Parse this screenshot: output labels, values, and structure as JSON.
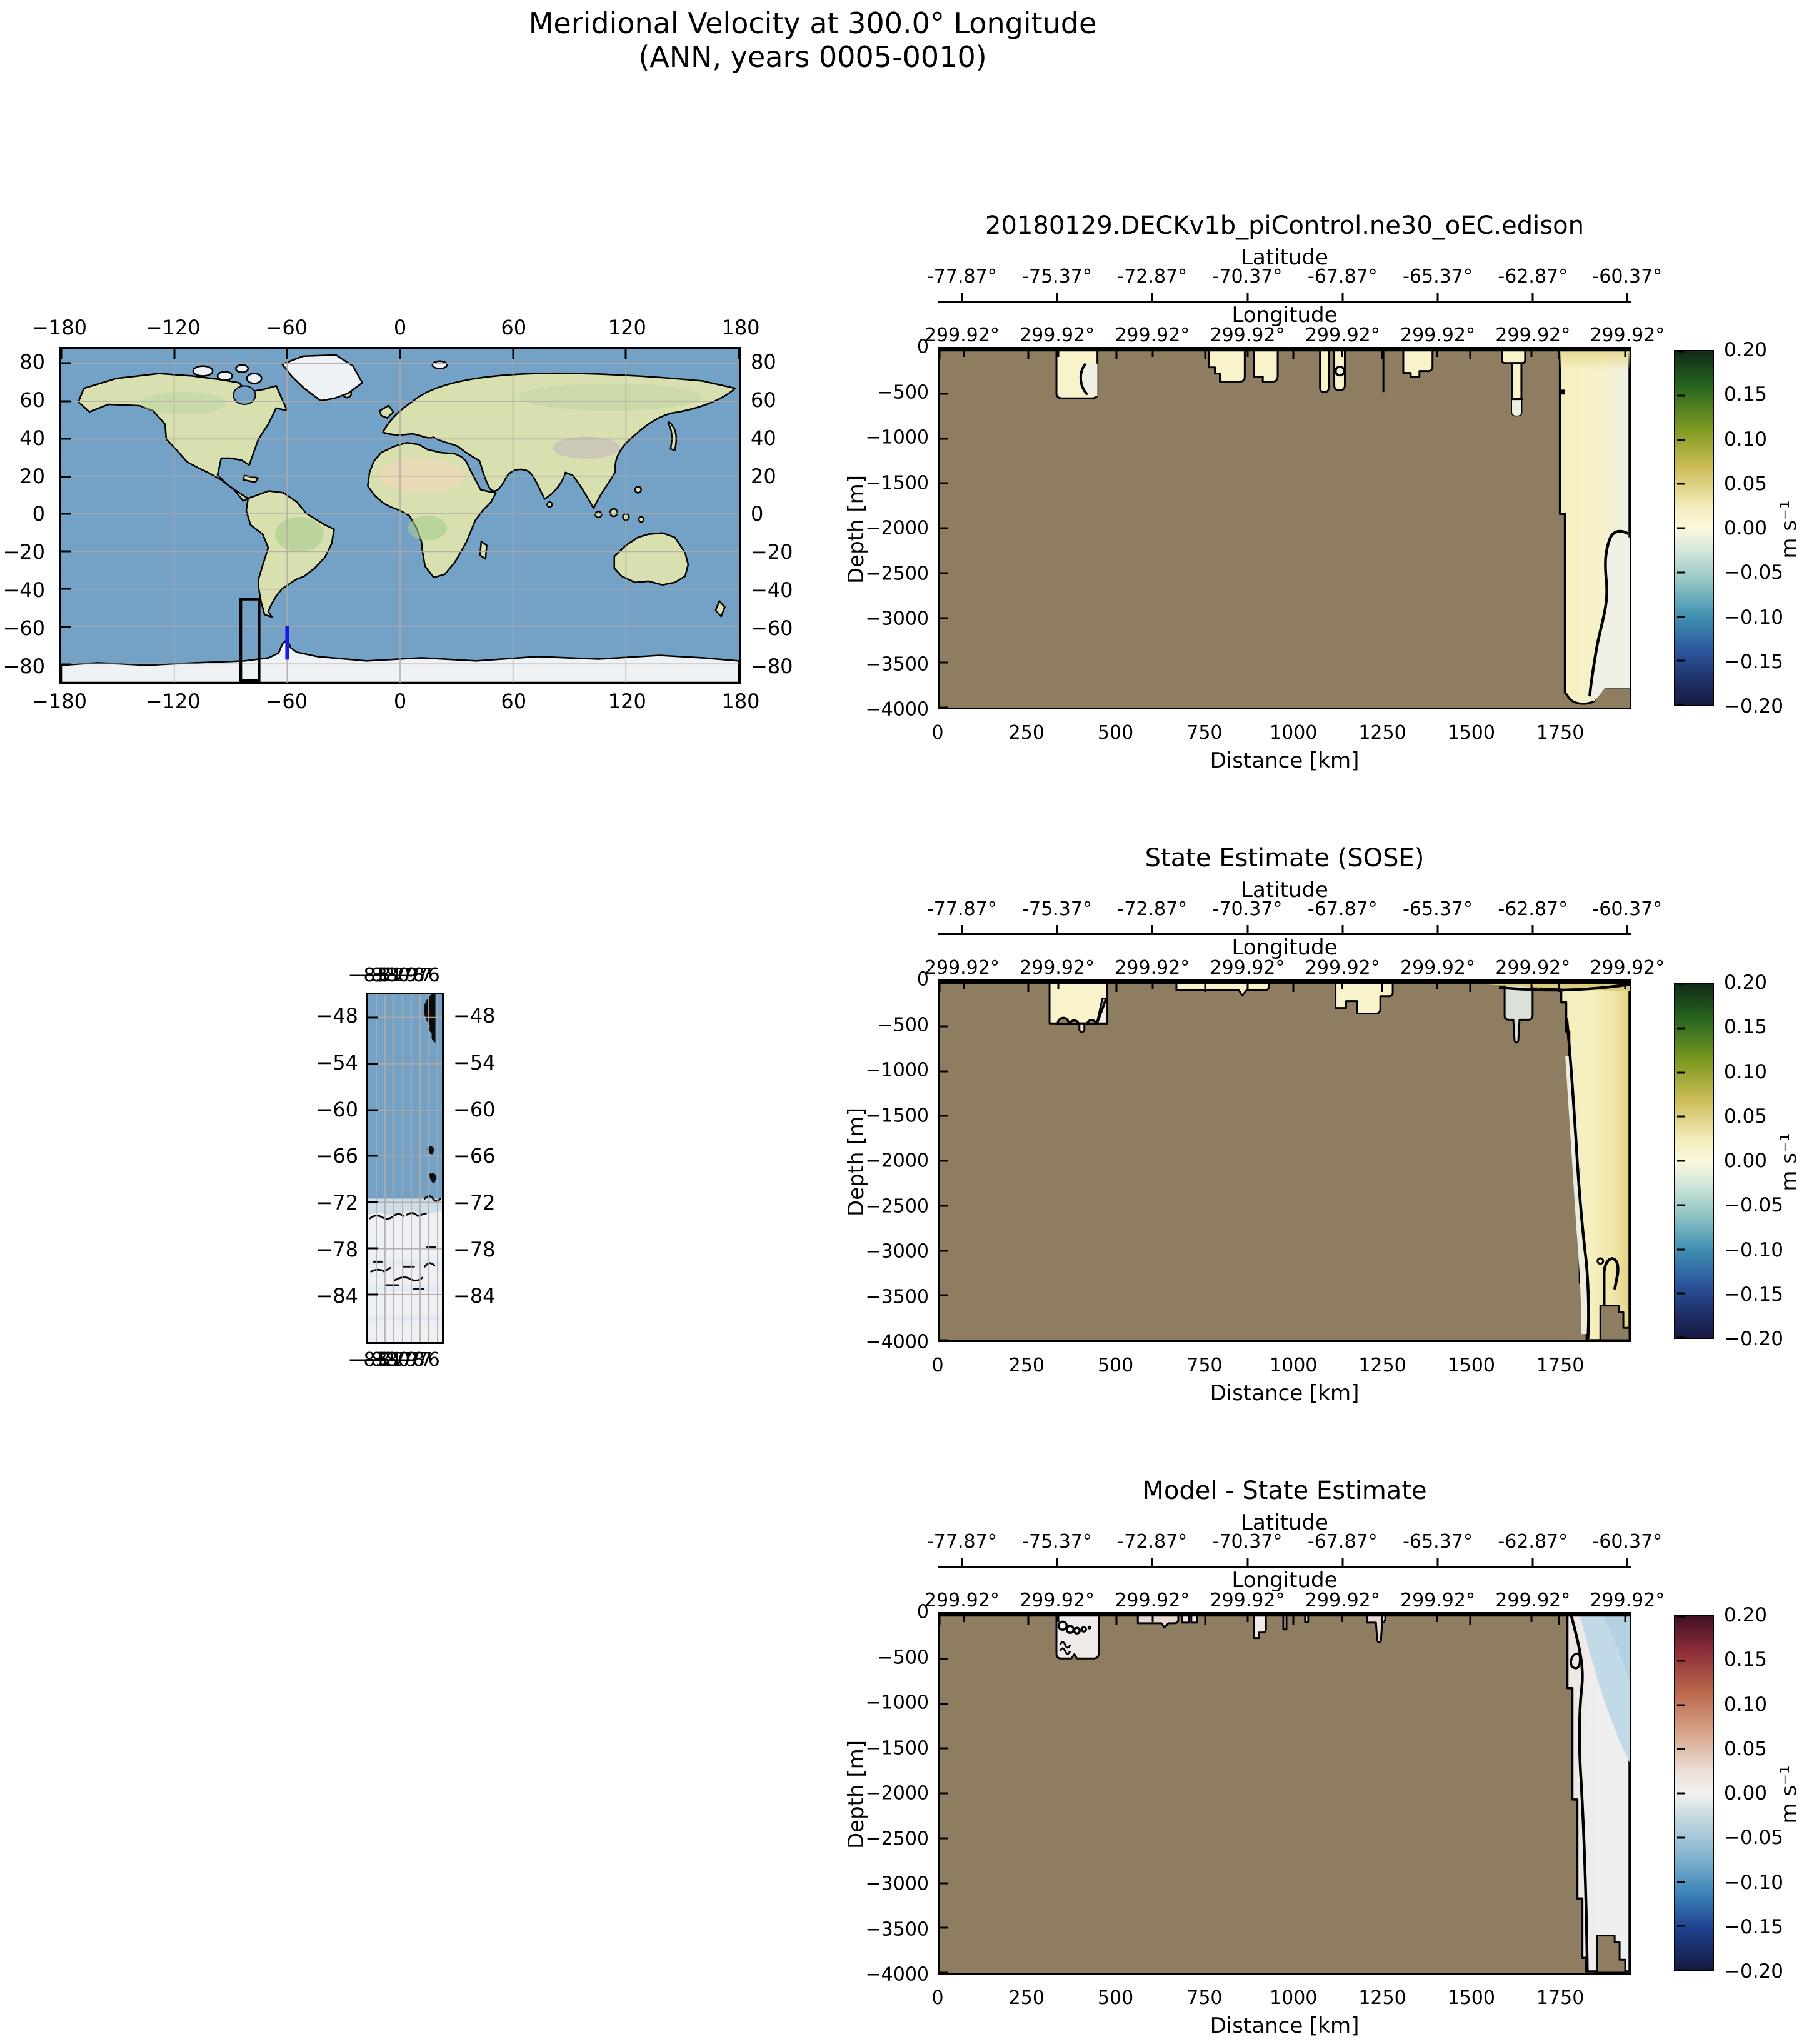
{
  "figure": {
    "title_line1": "Meridional Velocity at 300.0° Longitude",
    "title_line2": "(ANN, years 0005-0010)"
  },
  "world_map": {
    "x_ticks": [
      "−180",
      "−120",
      "−60",
      "0",
      "60",
      "120",
      "180"
    ],
    "y_ticks": [
      "80",
      "60",
      "40",
      "20",
      "0",
      "−20",
      "−40",
      "−60",
      "−80"
    ]
  },
  "region_map": {
    "x_ticks": [
      "−83",
      "−82",
      "−81",
      "−80",
      "−79",
      "−78",
      "−77",
      "−76"
    ],
    "y_ticks": [
      "−48",
      "−54",
      "−60",
      "−66",
      "−72",
      "−78",
      "−84"
    ]
  },
  "axes_common": {
    "lat_label": "Latitude",
    "lon_label": "Longitude",
    "depth_label": "Depth [m]",
    "distance_label": "Distance [km]",
    "lat_ticks": [
      "-77.87°",
      "-75.37°",
      "-72.87°",
      "-70.37°",
      "-67.87°",
      "-65.37°",
      "-62.87°",
      "-60.37°"
    ],
    "lon_ticks": [
      "299.92°",
      "299.92°",
      "299.92°",
      "299.92°",
      "299.92°",
      "299.92°",
      "299.92°",
      "299.92°"
    ],
    "depth_ticks": [
      "0",
      "−500",
      "−1000",
      "−1500",
      "−2000",
      "−2500",
      "−3000",
      "−3500",
      "−4000"
    ],
    "distance_ticks": [
      "0",
      "250",
      "500",
      "750",
      "1000",
      "1250",
      "1500",
      "1750"
    ]
  },
  "panels": [
    {
      "title": "20180129.DECKv1b_piControl.ne30_oEC.edison"
    },
    {
      "title": "State Estimate (SOSE)"
    },
    {
      "title": "Model - State Estimate"
    }
  ],
  "colorbar": {
    "ticks": [
      "0.20",
      "0.15",
      "0.10",
      "0.05",
      "0.00",
      "−0.05",
      "−0.10",
      "−0.15",
      "−0.20"
    ],
    "unit": "m s⁻¹"
  },
  "colors": {
    "land_fill": "#8e7d61",
    "ocean_fill": "#74a2c7",
    "annotation_box": "#000000",
    "transect_line": "#1a1ae6"
  },
  "chart_data": {
    "type": "heatmap",
    "title": "Meridional Velocity at 300.0° Longitude (ANN, years 0005-0010)",
    "units": "m s⁻¹",
    "value_range": [
      -0.2,
      0.2
    ],
    "colorbar_ticks": [
      0.2,
      0.15,
      0.1,
      0.05,
      0.0,
      -0.05,
      -0.1,
      -0.15,
      -0.2
    ],
    "x_axis": {
      "label": "Distance [km]",
      "range_km": [
        0,
        1950
      ],
      "ticks": [
        0,
        250,
        500,
        750,
        1000,
        1250,
        1500,
        1750
      ]
    },
    "y_axis": {
      "label": "Depth [m]",
      "range_m": [
        -4000,
        0
      ],
      "ticks": [
        0,
        -500,
        -1000,
        -1500,
        -2000,
        -2500,
        -3000,
        -3500,
        -4000
      ]
    },
    "latitude_ticks_deg": [
      -77.87,
      -75.37,
      -72.87,
      -70.37,
      -67.87,
      -65.37,
      -62.87,
      -60.37
    ],
    "longitude_ticks_deg": [
      299.92,
      299.92,
      299.92,
      299.92,
      299.92,
      299.92,
      299.92,
      299.92
    ],
    "panels": [
      {
        "title": "20180129.DECKv1b_piControl.ne30_oEC.edison",
        "colormap": "cmocean delta (blue-cream-green)",
        "summary": "Section mostly seafloor (land fill). Shallow water pockets with weak positive velocity (0 to 0.05 m/s) near 330-460 km (to -560 m), 760-960 km (to -390 m), 1075-1145 km (to -480 m), 1310-1400 km (to -350 m), 1590-1650 km (to -750 m). Open-water column from ~1790 km to section end reaching -3900 m, values ~0 to 0.05 m/s, zero contour enclosing near-zero/slightly negative water below ~ -2100 m at the right edge."
      },
      {
        "title": "State Estimate (SOSE)",
        "colormap": "cmocean delta (blue-cream-green)",
        "summary": "Pockets near 310-475 km (to -500 m, wavy bathymetry), 660-930 km (thin, to -110 m), 1120-1330 km (stepped, to -360 m), weakly negative gray-green pocket near 1580-1670 km (to -430 m, finger to -550 m). Stepped shelf from ~1700 km; open water to -4000 m with positive velocity (0.02-0.08 m/s) strongest at surface near right edge; zero contour down the column with a closed loop above a bottom mesa near 1865-1930 km."
      },
      {
        "title": "Model - State Estimate",
        "colormap": "cmocean balance (blue-white-red)",
        "summary": "Differences near zero (white) in most pockets; small closed contours (dots) in the 330-460 km pocket; weak positive (pink) patches near 560-720 km and 1210-1250 km; weak negative (light blue, ~ -0.05 m/s) surface region at right edge from ~1775 km; zero contour runs down the open-water column to -4000 m."
      }
    ],
    "location_maps": {
      "global": {
        "lon_range": [
          -180,
          180
        ],
        "lat_range": [
          -90,
          88
        ],
        "box_lon": [
          -84.5,
          -75
        ],
        "box_lat": [
          -90,
          -45
        ],
        "transect_lon": -60,
        "transect_lat_range": [
          -78,
          -60
        ]
      },
      "regional": {
        "lon_range": [
          -84,
          -75.5
        ],
        "lat_range": [
          -90,
          -45
        ],
        "content": "ocean north of ~ -73, Antarctic ice shelf/continent south of it"
      }
    }
  }
}
